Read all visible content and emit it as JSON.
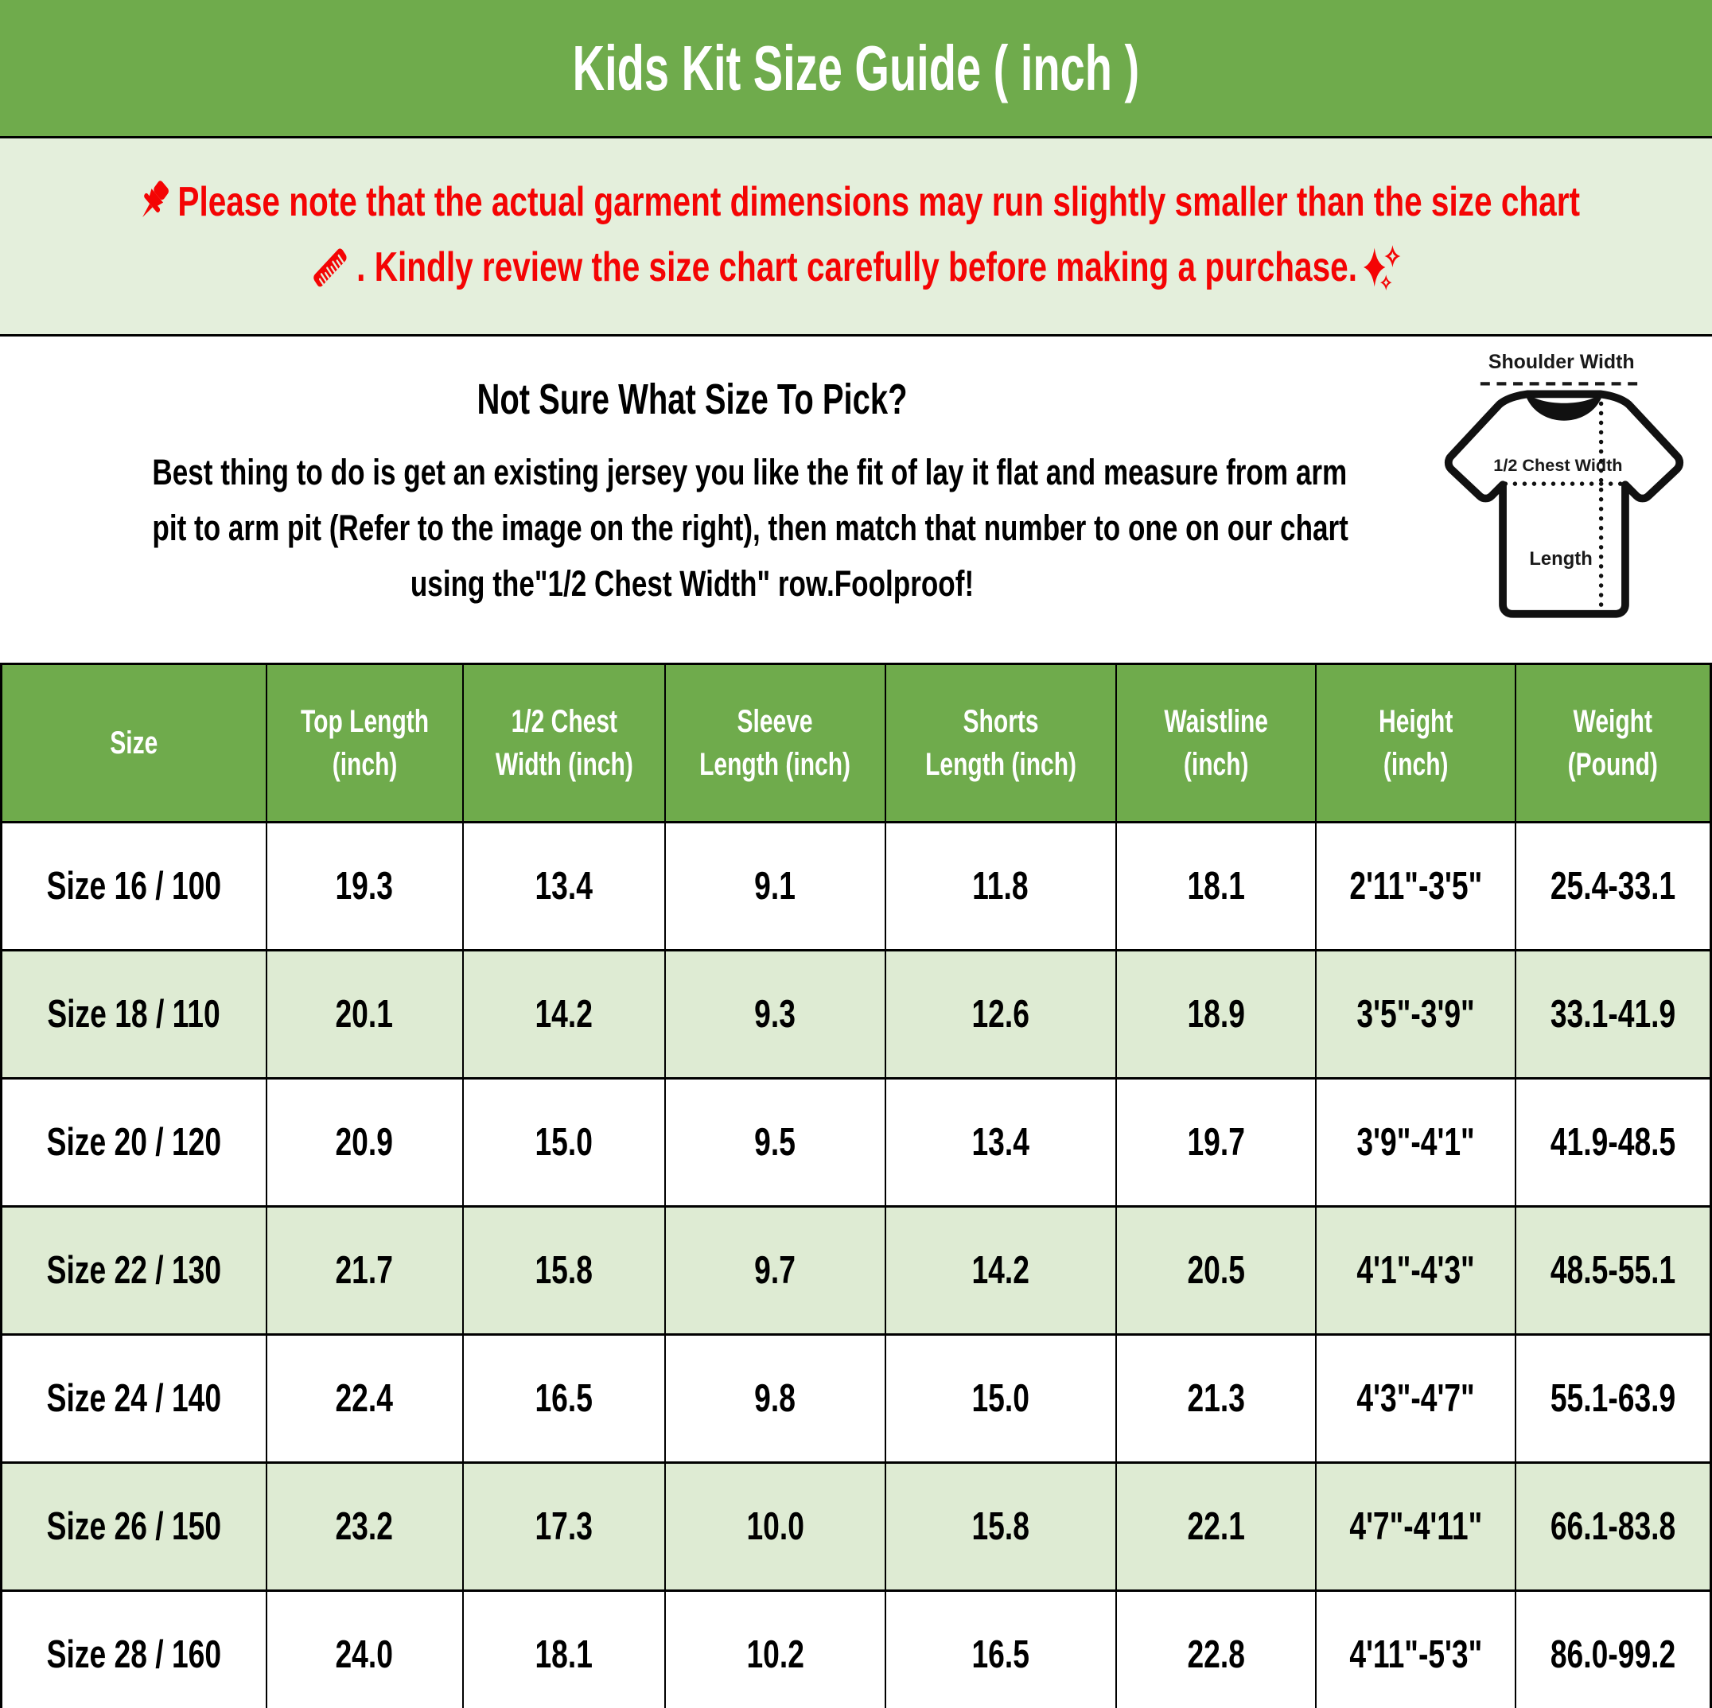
{
  "page_title": "Kids Kit Size Guide ( inch )",
  "colors": {
    "header_green": "#6FAB4C",
    "notice_bg": "#E4EFDC",
    "row_alt_bg": "#DEEBD3",
    "notice_red": "#F40404",
    "header_text": "#FFFFFF",
    "body_text": "#000000"
  },
  "notice": {
    "line1": "Please note that the actual garment dimensions may run slightly smaller than the size chart",
    "line2": ". Kindly review the size chart carefully before making a purchase.",
    "icons": [
      "pushpin-icon",
      "ruler-icon",
      "sparkles-icon"
    ]
  },
  "size_help": {
    "heading": "Not Sure What Size To Pick?",
    "body_lines": [
      "Best thing to do is get an existing jersey you like the fit of lay it flat and measure from arm",
      "pit to arm pit (Refer to the image on the right), then match that number to one on our chart",
      "using the\"1/2 Chest Width\" row.Foolproof!"
    ]
  },
  "diagram": {
    "shoulder_label": "Shoulder Width",
    "chest_label": "1/2 Chest Width",
    "length_label": "Length"
  },
  "table": {
    "headers": [
      "Size",
      "Top Length (inch)",
      "1/2 Chest Width (inch)",
      "Sleeve Length (inch)",
      "Shorts Length (inch)",
      "Waistline (inch)",
      "Height (inch)",
      "Weight (Pound)"
    ],
    "header_lines": [
      [
        "Size",
        ""
      ],
      [
        "Top Length",
        "(inch)"
      ],
      [
        "1/2 Chest",
        "Width (inch)"
      ],
      [
        "Sleeve",
        "Length (inch)"
      ],
      [
        "Shorts",
        "Length (inch)"
      ],
      [
        "Waistline",
        "(inch)"
      ],
      [
        "Height",
        "(inch)"
      ],
      [
        "Weight",
        "(Pound)"
      ]
    ],
    "rows": [
      [
        "Size 16 / 100",
        "19.3",
        "13.4",
        "9.1",
        "11.8",
        "18.1",
        "2'11\"-3'5\"",
        "25.4-33.1"
      ],
      [
        "Size 18 / 110",
        "20.1",
        "14.2",
        "9.3",
        "12.6",
        "18.9",
        "3'5\"-3'9\"",
        "33.1-41.9"
      ],
      [
        "Size 20 / 120",
        "20.9",
        "15.0",
        "9.5",
        "13.4",
        "19.7",
        "3'9\"-4'1\"",
        "41.9-48.5"
      ],
      [
        "Size 22 / 130",
        "21.7",
        "15.8",
        "9.7",
        "14.2",
        "20.5",
        "4'1\"-4'3\"",
        "48.5-55.1"
      ],
      [
        "Size 24 / 140",
        "22.4",
        "16.5",
        "9.8",
        "15.0",
        "21.3",
        "4'3\"-4'7\"",
        "55.1-63.9"
      ],
      [
        "Size 26 / 150",
        "23.2",
        "17.3",
        "10.0",
        "15.8",
        "22.1",
        "4'7\"-4'11\"",
        "66.1-83.8"
      ],
      [
        "Size 28 / 160",
        "24.0",
        "18.1",
        "10.2",
        "16.5",
        "22.8",
        "4'11\"-5'3\"",
        "86.0-99.2"
      ]
    ]
  }
}
